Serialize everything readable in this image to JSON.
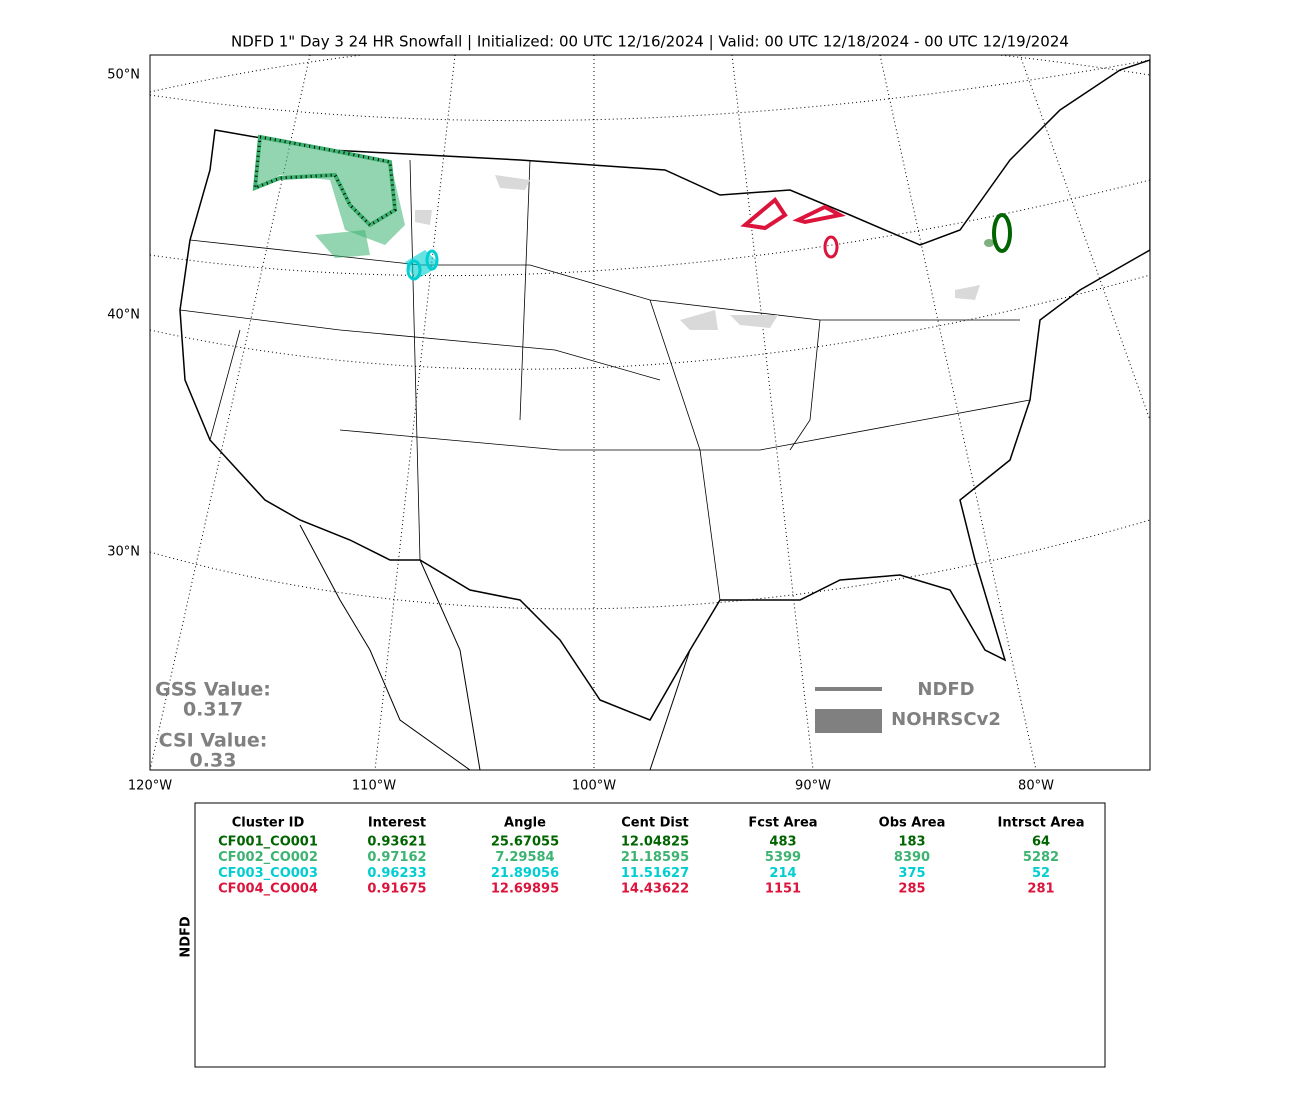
{
  "title": "NDFD 1\" Day 3 24 HR Snowfall | Initialized: 00 UTC 12/16/2024 | Valid: 00 UTC 12/18/2024 - 00 UTC 12/19/2024",
  "map": {
    "lat_labels": [
      "50°N",
      "40°N",
      "30°N"
    ],
    "lon_labels": [
      "120°W",
      "110°W",
      "100°W",
      "90°W",
      "80°W"
    ],
    "legend": {
      "line": "NDFD",
      "area": "NOHRSCv2"
    },
    "stats": {
      "gss_label": "GSS Value:",
      "gss_value": "0.317",
      "csi_label": "CSI Value:",
      "csi_value": "0.33"
    }
  },
  "table": {
    "side_label": "NDFD",
    "headers": [
      "Cluster ID",
      "Interest",
      "Angle",
      "Cent Dist",
      "Fcst Area",
      "Obs Area",
      "Intrsct Area"
    ],
    "rows": [
      {
        "color": "#006400",
        "cells": [
          "CF001_CO001",
          "0.93621",
          "25.67055",
          "12.04825",
          "483",
          "183",
          "64"
        ]
      },
      {
        "color": "#3cb371",
        "cells": [
          "CF002_CO002",
          "0.97162",
          "7.29584",
          "21.18595",
          "5399",
          "8390",
          "5282"
        ]
      },
      {
        "color": "#00ced1",
        "cells": [
          "CF003_CO003",
          "0.96233",
          "21.89056",
          "11.51627",
          "214",
          "375",
          "52"
        ]
      },
      {
        "color": "#dc143c",
        "cells": [
          "CF004_CO004",
          "0.91675",
          "12.69895",
          "14.43622",
          "1151",
          "285",
          "281"
        ]
      }
    ]
  }
}
